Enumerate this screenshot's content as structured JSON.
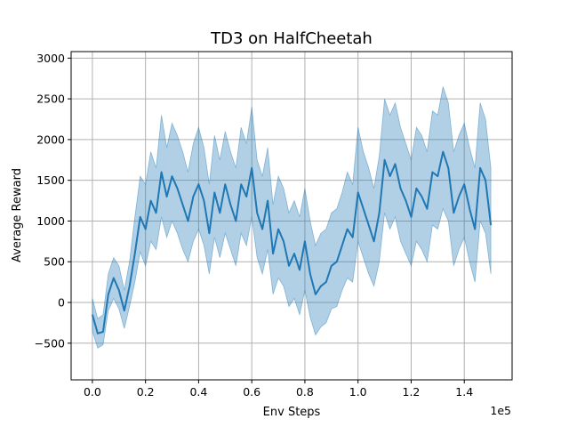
{
  "chart_data": {
    "type": "line",
    "title": "TD3 on HalfCheetah",
    "xlabel": "Env Steps",
    "ylabel": "Average Reward",
    "x_offset_label": "1e5",
    "xlim": [
      -0.08,
      1.58
    ],
    "ylim": [
      -950,
      3080
    ],
    "x_ticks": [
      0.0,
      0.2,
      0.4,
      0.6,
      0.8,
      1.0,
      1.2,
      1.4
    ],
    "x_tick_labels": [
      "0.0",
      "0.2",
      "0.4",
      "0.6",
      "0.8",
      "1.0",
      "1.2",
      "1.4"
    ],
    "y_ticks": [
      -500,
      0,
      500,
      1000,
      1500,
      2000,
      2500,
      3000
    ],
    "y_tick_labels": [
      "−500",
      "0",
      "500",
      "1000",
      "1500",
      "2000",
      "2500",
      "3000"
    ],
    "grid": true,
    "series": [
      {
        "color": "#1f77b4",
        "x": [
          0.0,
          0.02,
          0.04,
          0.06,
          0.08,
          0.1,
          0.12,
          0.14,
          0.16,
          0.18,
          0.2,
          0.22,
          0.24,
          0.26,
          0.28,
          0.3,
          0.32,
          0.34,
          0.36,
          0.38,
          0.4,
          0.42,
          0.44,
          0.46,
          0.48,
          0.5,
          0.52,
          0.54,
          0.56,
          0.58,
          0.6,
          0.62,
          0.64,
          0.66,
          0.68,
          0.7,
          0.72,
          0.74,
          0.76,
          0.78,
          0.8,
          0.82,
          0.84,
          0.86,
          0.88,
          0.9,
          0.92,
          0.94,
          0.96,
          0.98,
          1.0,
          1.02,
          1.04,
          1.06,
          1.08,
          1.1,
          1.12,
          1.14,
          1.16,
          1.18,
          1.2,
          1.22,
          1.24,
          1.26,
          1.28,
          1.3,
          1.32,
          1.34,
          1.36,
          1.38,
          1.4,
          1.42,
          1.44,
          1.46,
          1.48,
          1.5
        ],
        "mean": [
          -150,
          -380,
          -360,
          100,
          300,
          150,
          -100,
          200,
          600,
          1050,
          900,
          1250,
          1100,
          1600,
          1300,
          1550,
          1400,
          1200,
          1000,
          1300,
          1450,
          1250,
          850,
          1350,
          1100,
          1450,
          1200,
          1000,
          1450,
          1300,
          1650,
          1100,
          900,
          1250,
          600,
          900,
          750,
          450,
          600,
          400,
          750,
          350,
          100,
          200,
          250,
          450,
          500,
          700,
          900,
          800,
          1350,
          1150,
          950,
          750,
          1100,
          1750,
          1550,
          1700,
          1400,
          1250,
          1050,
          1400,
          1300,
          1150,
          1600,
          1550,
          1850,
          1650,
          1100,
          1300,
          1450,
          1150,
          900,
          1650,
          1500,
          950
        ],
        "lower": [
          -350,
          -560,
          -520,
          -100,
          50,
          -80,
          -320,
          -50,
          250,
          620,
          450,
          750,
          650,
          1050,
          800,
          1000,
          850,
          650,
          500,
          750,
          900,
          700,
          350,
          800,
          550,
          850,
          650,
          450,
          850,
          700,
          1050,
          550,
          350,
          650,
          100,
          300,
          200,
          -50,
          50,
          -150,
          150,
          -180,
          -400,
          -300,
          -250,
          -80,
          -50,
          150,
          300,
          250,
          750,
          550,
          350,
          200,
          500,
          1100,
          900,
          1050,
          750,
          600,
          450,
          750,
          650,
          500,
          950,
          900,
          1150,
          1000,
          450,
          650,
          800,
          500,
          250,
          1000,
          850,
          350
        ],
        "upper": [
          50,
          -200,
          -150,
          350,
          550,
          450,
          150,
          500,
          1050,
          1550,
          1450,
          1850,
          1650,
          2300,
          1900,
          2200,
          2050,
          1850,
          1600,
          1950,
          2150,
          1900,
          1450,
          2050,
          1750,
          2100,
          1850,
          1650,
          2150,
          1950,
          2400,
          1750,
          1550,
          1900,
          1200,
          1550,
          1400,
          1100,
          1250,
          1050,
          1400,
          1000,
          700,
          850,
          900,
          1100,
          1150,
          1350,
          1600,
          1450,
          2150,
          1850,
          1650,
          1400,
          1800,
          2500,
          2300,
          2450,
          2150,
          1950,
          1750,
          2150,
          2050,
          1850,
          2350,
          2300,
          2650,
          2450,
          1850,
          2050,
          2200,
          1900,
          1650,
          2450,
          2250,
          1650
        ]
      }
    ]
  }
}
